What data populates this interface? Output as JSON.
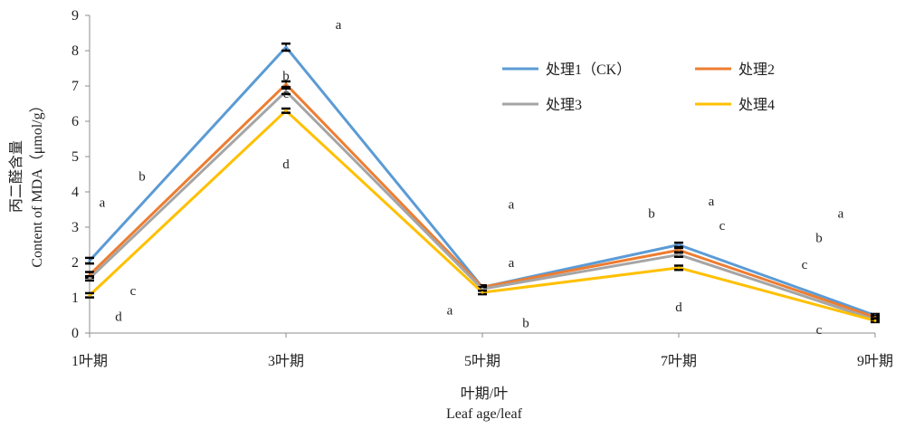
{
  "chart_data": {
    "type": "line",
    "title": "",
    "xlabel": "叶期/叶",
    "xlabel_en": "Leaf age/leaf",
    "ylabel": "丙二醛含量",
    "ylabel_en": "Content of MDA（μmol/g）",
    "categories": [
      "1叶期",
      "3叶期",
      "5叶期",
      "7叶期",
      "9叶期"
    ],
    "ylim": [
      0,
      9
    ],
    "yticks": [
      0,
      1,
      2,
      3,
      4,
      5,
      6,
      7,
      8,
      9
    ],
    "grid": false,
    "legend_position": "top-right",
    "series": [
      {
        "name": "处理1（CK）",
        "color": "#5B9BD5",
        "values": [
          2.05,
          8.1,
          1.3,
          2.5,
          0.5
        ],
        "errors": [
          0.08,
          0.1,
          0.05,
          0.06,
          0.04
        ]
      },
      {
        "name": "处理2",
        "color": "#ED7D31",
        "values": [
          1.65,
          7.05,
          1.3,
          2.35,
          0.45
        ],
        "errors": [
          0.08,
          0.08,
          0.05,
          0.06,
          0.04
        ]
      },
      {
        "name": "处理3",
        "color": "#A5A5A5",
        "values": [
          1.55,
          6.85,
          1.25,
          2.22,
          0.38
        ],
        "errors": [
          0.06,
          0.08,
          0.05,
          0.06,
          0.04
        ]
      },
      {
        "name": "处理4",
        "color": "#FFC000",
        "values": [
          1.07,
          6.3,
          1.15,
          1.85,
          0.35
        ],
        "errors": [
          0.06,
          0.06,
          0.05,
          0.06,
          0.04
        ]
      }
    ],
    "annotations": [
      {
        "text": "a",
        "x": 0,
        "y": 3.7
      },
      {
        "text": "b",
        "x": 0,
        "y": 4.45
      },
      {
        "text": "c",
        "x": 0,
        "y": 1.2
      },
      {
        "text": "d",
        "x": 0,
        "y": 0.48
      },
      {
        "text": "a",
        "x": 1,
        "y": 8.75
      },
      {
        "text": "b",
        "x": 1,
        "y": 7.3
      },
      {
        "text": "c",
        "x": 1,
        "y": 6.8
      },
      {
        "text": "d",
        "x": 1,
        "y": 4.8
      },
      {
        "text": "a",
        "x": 2,
        "y": 3.65
      },
      {
        "text": "a",
        "x": 2,
        "y": 2.0
      },
      {
        "text": "a",
        "x": 2,
        "y": 0.65
      },
      {
        "text": "b",
        "x": 2,
        "y": 0.3
      },
      {
        "text": "b",
        "x": 3,
        "y": 3.4
      },
      {
        "text": "a",
        "x": 3,
        "y": 3.75
      },
      {
        "text": "c",
        "x": 3,
        "y": 3.05
      },
      {
        "text": "d",
        "x": 3,
        "y": 0.75
      },
      {
        "text": "a",
        "x": 4,
        "y": 3.4
      },
      {
        "text": "b",
        "x": 4,
        "y": 2.7
      },
      {
        "text": "c",
        "x": 4,
        "y": 1.95
      },
      {
        "text": "c",
        "x": 4,
        "y": 0.1
      }
    ]
  }
}
